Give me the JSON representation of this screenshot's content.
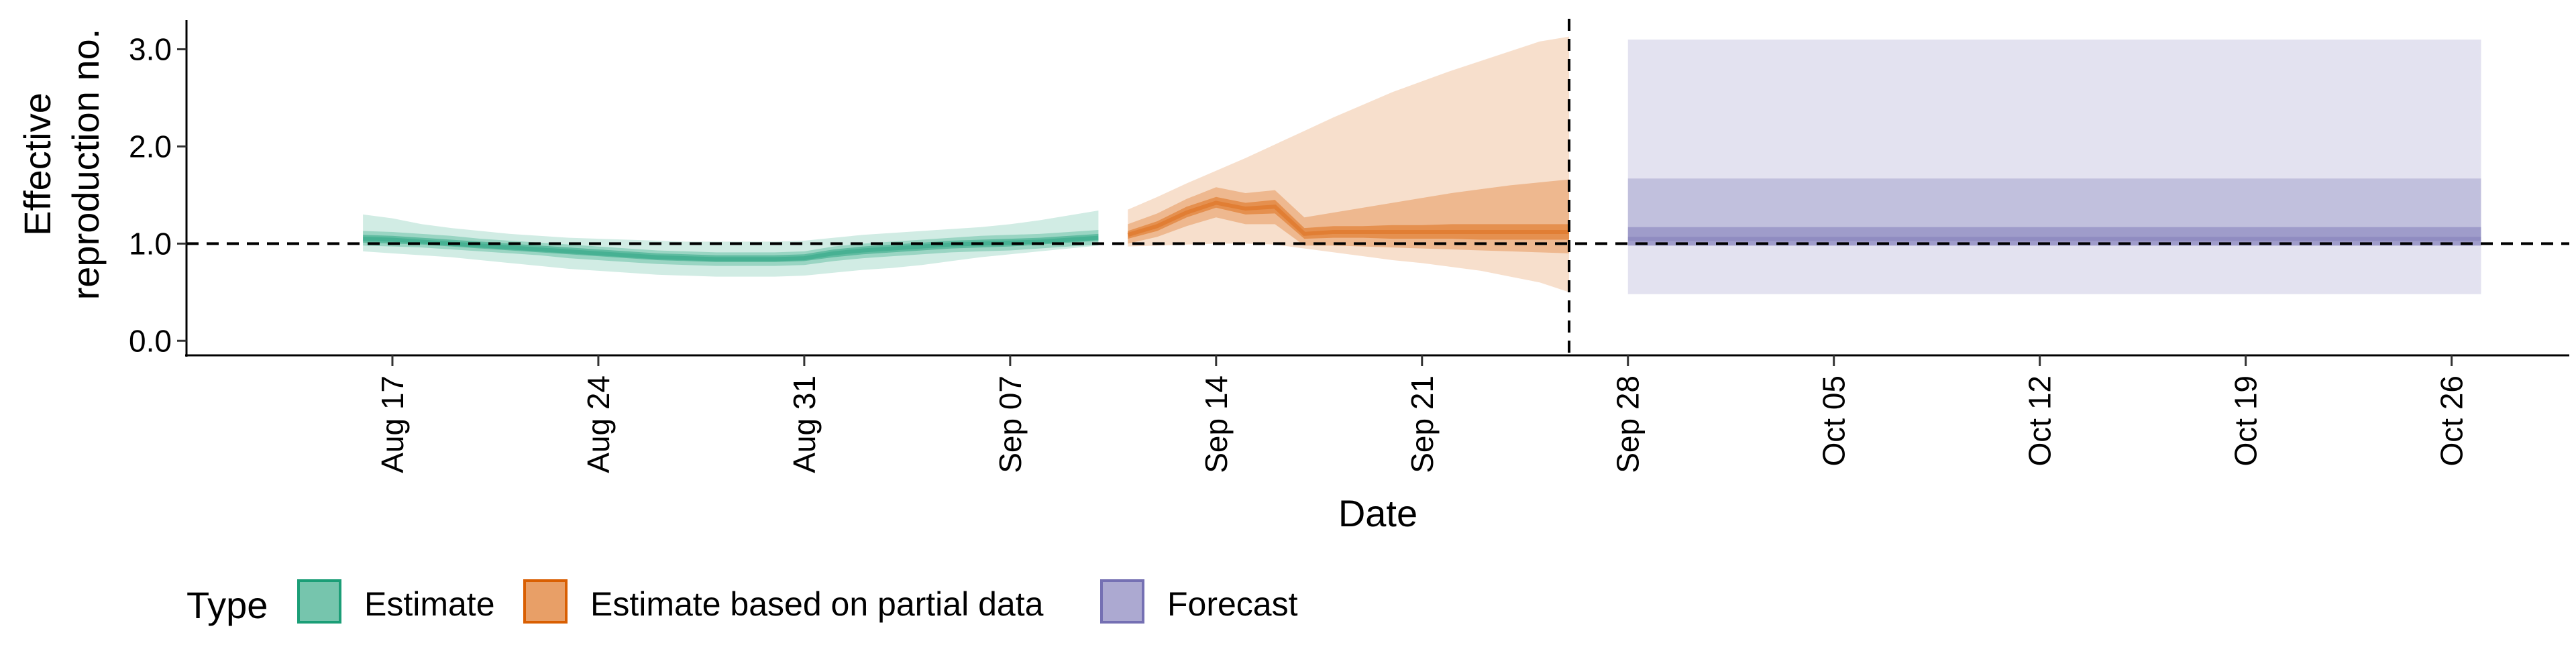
{
  "chart_data": {
    "type": "area",
    "xlabel": "Date",
    "ylabel_lines": [
      "Effective",
      "reproduction no."
    ],
    "ylim": [
      -0.15,
      3.3
    ],
    "y_ticks": [
      0.0,
      1.0,
      2.0,
      3.0
    ],
    "y_tick_labels": [
      "0.0",
      "1.0",
      "2.0",
      "3.0"
    ],
    "x_range": [
      "2020-08-10",
      "2020-10-30"
    ],
    "x_ticks": [
      "2020-08-17",
      "2020-08-24",
      "2020-08-31",
      "2020-09-07",
      "2020-09-14",
      "2020-09-21",
      "2020-09-28",
      "2020-10-05",
      "2020-10-12",
      "2020-10-19",
      "2020-10-26"
    ],
    "x_tick_labels": [
      "Aug 17",
      "Aug 24",
      "Aug 31",
      "Sep 07",
      "Sep 14",
      "Sep 21",
      "Sep 28",
      "Oct 05",
      "Oct 12",
      "Oct 19",
      "Oct 26"
    ],
    "reference_line_y": 1.0,
    "forecast_start_line": "2020-09-26",
    "legend": {
      "title": "Type",
      "position": "bottom",
      "items": [
        "Estimate",
        "Estimate based on partial data",
        "Forecast"
      ]
    },
    "series": [
      {
        "name": "Estimate",
        "color": "#1b9e77",
        "dates": [
          "2020-08-16",
          "2020-08-17",
          "2020-08-18",
          "2020-08-19",
          "2020-08-20",
          "2020-08-21",
          "2020-08-22",
          "2020-08-23",
          "2020-08-24",
          "2020-08-25",
          "2020-08-26",
          "2020-08-27",
          "2020-08-28",
          "2020-08-29",
          "2020-08-30",
          "2020-08-31",
          "2020-09-01",
          "2020-09-02",
          "2020-09-03",
          "2020-09-04",
          "2020-09-05",
          "2020-09-06",
          "2020-09-07",
          "2020-09-08",
          "2020-09-09",
          "2020-09-10"
        ],
        "median": [
          1.05,
          1.04,
          1.02,
          1.0,
          0.98,
          0.96,
          0.94,
          0.92,
          0.9,
          0.88,
          0.86,
          0.85,
          0.84,
          0.84,
          0.84,
          0.85,
          0.9,
          0.93,
          0.95,
          0.97,
          0.99,
          1.0,
          1.01,
          1.02,
          1.04,
          1.06
        ],
        "lower_20": [
          1.01,
          1.0,
          0.99,
          0.97,
          0.95,
          0.93,
          0.91,
          0.89,
          0.87,
          0.85,
          0.83,
          0.82,
          0.81,
          0.81,
          0.81,
          0.82,
          0.86,
          0.89,
          0.91,
          0.93,
          0.95,
          0.96,
          0.97,
          0.99,
          1.01,
          1.03
        ],
        "upper_20": [
          1.09,
          1.08,
          1.06,
          1.04,
          1.02,
          1.0,
          0.98,
          0.96,
          0.94,
          0.92,
          0.9,
          0.89,
          0.88,
          0.88,
          0.88,
          0.89,
          0.94,
          0.97,
          0.99,
          1.01,
          1.03,
          1.04,
          1.05,
          1.06,
          1.08,
          1.1
        ],
        "lower_50": [
          0.98,
          0.97,
          0.96,
          0.94,
          0.92,
          0.9,
          0.88,
          0.85,
          0.83,
          0.81,
          0.79,
          0.78,
          0.77,
          0.77,
          0.77,
          0.78,
          0.82,
          0.85,
          0.87,
          0.89,
          0.91,
          0.92,
          0.93,
          0.95,
          0.97,
          0.99
        ],
        "upper_50": [
          1.13,
          1.12,
          1.1,
          1.08,
          1.05,
          1.03,
          1.01,
          0.99,
          0.97,
          0.95,
          0.93,
          0.92,
          0.91,
          0.91,
          0.91,
          0.92,
          0.97,
          1.0,
          1.02,
          1.04,
          1.06,
          1.08,
          1.09,
          1.1,
          1.12,
          1.14
        ],
        "lower_90": [
          0.92,
          0.9,
          0.88,
          0.86,
          0.83,
          0.8,
          0.77,
          0.74,
          0.72,
          0.7,
          0.68,
          0.67,
          0.66,
          0.66,
          0.66,
          0.67,
          0.7,
          0.73,
          0.75,
          0.78,
          0.82,
          0.86,
          0.89,
          0.92,
          0.95,
          0.98
        ],
        "upper_90": [
          1.3,
          1.26,
          1.2,
          1.16,
          1.13,
          1.1,
          1.08,
          1.06,
          1.05,
          1.04,
          1.03,
          1.02,
          1.02,
          1.02,
          1.02,
          1.03,
          1.06,
          1.09,
          1.11,
          1.13,
          1.15,
          1.17,
          1.2,
          1.24,
          1.29,
          1.34
        ]
      },
      {
        "name": "Estimate based on partial data",
        "color": "#d95f02",
        "dates": [
          "2020-09-11",
          "2020-09-12",
          "2020-09-13",
          "2020-09-14",
          "2020-09-15",
          "2020-09-16",
          "2020-09-17",
          "2020-09-18",
          "2020-09-19",
          "2020-09-20",
          "2020-09-21",
          "2020-09-22",
          "2020-09-23",
          "2020-09-24",
          "2020-09-25",
          "2020-09-26"
        ],
        "median": [
          1.09,
          1.18,
          1.32,
          1.42,
          1.36,
          1.38,
          1.1,
          1.12,
          1.12,
          1.12,
          1.12,
          1.12,
          1.12,
          1.12,
          1.12,
          1.12
        ],
        "lower_20": [
          1.05,
          1.13,
          1.27,
          1.37,
          1.3,
          1.31,
          1.05,
          1.06,
          1.06,
          1.05,
          1.05,
          1.05,
          1.04,
          1.04,
          1.04,
          1.04
        ],
        "upper_20": [
          1.13,
          1.23,
          1.38,
          1.48,
          1.42,
          1.45,
          1.16,
          1.18,
          1.18,
          1.19,
          1.19,
          1.2,
          1.2,
          1.2,
          1.2,
          1.2
        ],
        "lower_50": [
          1.0,
          1.07,
          1.18,
          1.27,
          1.2,
          1.2,
          0.98,
          0.98,
          0.97,
          0.96,
          0.95,
          0.94,
          0.93,
          0.92,
          0.91,
          0.9
        ],
        "upper_50": [
          1.2,
          1.31,
          1.46,
          1.58,
          1.52,
          1.55,
          1.27,
          1.32,
          1.37,
          1.42,
          1.47,
          1.52,
          1.56,
          1.6,
          1.63,
          1.66
        ],
        "lower_90": [
          0.97,
          0.98,
          0.99,
          1.0,
          1.0,
          0.99,
          0.95,
          0.91,
          0.87,
          0.83,
          0.8,
          0.76,
          0.72,
          0.66,
          0.6,
          0.5
        ],
        "upper_90": [
          1.35,
          1.48,
          1.62,
          1.75,
          1.88,
          2.02,
          2.16,
          2.3,
          2.43,
          2.56,
          2.67,
          2.78,
          2.88,
          2.98,
          3.08,
          3.13
        ]
      },
      {
        "name": "Forecast",
        "color": "#7570b3",
        "dates": [
          "2020-09-28",
          "2020-10-27"
        ],
        "median": [
          1.05,
          1.05
        ],
        "lower_20": [
          0.98,
          0.98
        ],
        "upper_20": [
          1.17,
          1.17
        ],
        "lower_50": [
          0.98,
          0.98
        ],
        "upper_50": [
          1.67,
          1.67
        ],
        "lower_90": [
          0.48,
          0.48
        ],
        "upper_90": [
          3.1,
          3.1
        ]
      }
    ]
  }
}
